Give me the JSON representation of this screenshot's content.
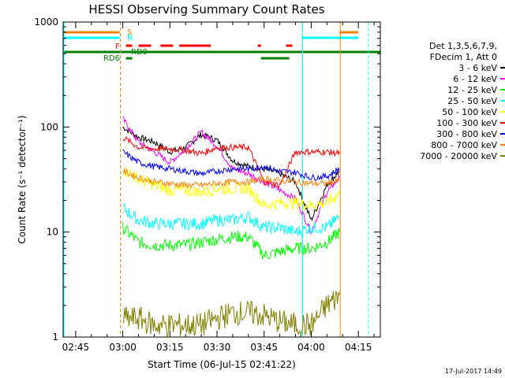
{
  "chart_data": {
    "type": "line",
    "title": "HESSI Observing Summary Count Rates",
    "xlabel": "Start Time (06-Jul-15 02:41:22)",
    "ylabel": "Count Rate (s⁻¹ detector⁻¹)",
    "ylim": [
      1,
      1000
    ],
    "yscale": "log",
    "xlim": [
      "02:41",
      "04:22"
    ],
    "xticks": [
      "02:45",
      "03:00",
      "03:15",
      "03:30",
      "03:45",
      "04:00",
      "04:15"
    ],
    "yticks": [
      "1",
      "10",
      "100",
      "1000"
    ],
    "legend_position": "right",
    "legend_header": [
      "Det 1,3,5,6,7,9,",
      "FDecim 1, Att 0"
    ],
    "footer_date": "17-Jul-2017 14:49",
    "flags": [
      {
        "label": "S",
        "color": "#ff8000"
      },
      {
        "label": "N",
        "color": "#00ffff"
      },
      {
        "label": "F",
        "color": "#ff0000"
      },
      {
        "label": "RD0",
        "color": "#008000"
      },
      {
        "label": "RD6",
        "color": "#008000"
      }
    ],
    "x": [
      "03:00",
      "03:05",
      "03:10",
      "03:15",
      "03:20",
      "03:25",
      "03:30",
      "03:35",
      "03:40",
      "03:45",
      "03:50",
      "03:55",
      "04:00",
      "04:05",
      "04:09"
    ],
    "series": [
      {
        "name": "3 - 6 keV",
        "color": "#000000",
        "values": [
          100,
          80,
          72,
          58,
          64,
          85,
          75,
          48,
          42,
          40,
          36,
          30,
          13,
          28,
          38
        ]
      },
      {
        "name": "6 - 12 keV",
        "color": "#ff00ff",
        "values": [
          120,
          72,
          58,
          46,
          62,
          90,
          66,
          40,
          36,
          30,
          25,
          21,
          10,
          24,
          33
        ]
      },
      {
        "name": "12 - 25 keV",
        "color": "#00ff00",
        "values": [
          11,
          8,
          7.5,
          7.5,
          7.5,
          8,
          8.5,
          9,
          9,
          6,
          6.5,
          7,
          7,
          8,
          10
        ]
      },
      {
        "name": "25 - 50 keV",
        "color": "#00ffff",
        "values": [
          17,
          13,
          12,
          12,
          12,
          12,
          13,
          13,
          14,
          11,
          11,
          10,
          11,
          11,
          14
        ]
      },
      {
        "name": "50 - 100 keV",
        "color": "#ffff00",
        "values": [
          40,
          32,
          28,
          25,
          25,
          24,
          26,
          26,
          26,
          18,
          19,
          19,
          18,
          19,
          23
        ]
      },
      {
        "name": "100 - 300 keV",
        "color": "#ff0000",
        "values": [
          80,
          64,
          62,
          62,
          60,
          56,
          64,
          64,
          64,
          30,
          28,
          58,
          58,
          58,
          56
        ]
      },
      {
        "name": "300 - 800 keV",
        "color": "#0000ff",
        "values": [
          58,
          46,
          42,
          40,
          38,
          36,
          38,
          40,
          40,
          42,
          38,
          37,
          33,
          34,
          40
        ]
      },
      {
        "name": "800 - 7000 keV",
        "color": "#ff8000",
        "values": [
          38,
          33,
          30,
          29,
          28,
          28,
          29,
          30,
          30,
          32,
          31,
          30,
          29,
          29,
          31
        ]
      },
      {
        "name": "7000 - 20000 keV",
        "color": "#808000",
        "values": [
          1.5,
          1.5,
          1.3,
          1.3,
          1.3,
          1.3,
          1.5,
          1.7,
          1.7,
          1.6,
          1.4,
          1.3,
          1.3,
          2,
          2.5
        ]
      }
    ]
  }
}
